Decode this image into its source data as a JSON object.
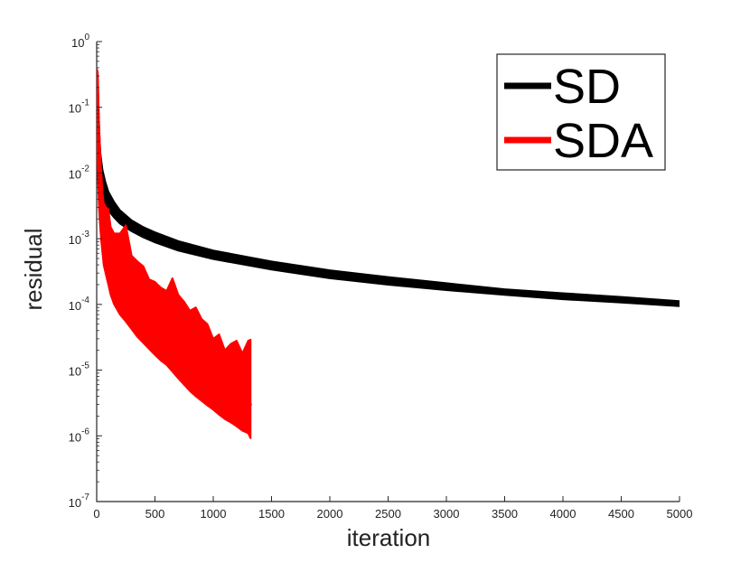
{
  "chart_data": {
    "type": "line",
    "title": "",
    "xlabel": "iteration",
    "ylabel": "residual",
    "xlim": [
      0,
      5000
    ],
    "ylim": [
      1e-07,
      1
    ],
    "yscale": "log",
    "grid": false,
    "legend_position": "top-right",
    "x_ticks": [
      0,
      500,
      1000,
      1500,
      2000,
      2500,
      3000,
      3500,
      4000,
      4500,
      5000
    ],
    "x_tick_labels": [
      "0",
      "500",
      "1000",
      "1500",
      "2000",
      "2500",
      "3000",
      "3500",
      "4000",
      "4500",
      "5000"
    ],
    "y_ticks": [
      {
        "value": 1e-07,
        "base": "10",
        "exp": "-7"
      },
      {
        "value": 1e-06,
        "base": "10",
        "exp": "-6"
      },
      {
        "value": 1e-05,
        "base": "10",
        "exp": "-5"
      },
      {
        "value": 0.0001,
        "base": "10",
        "exp": "-4"
      },
      {
        "value": 0.001,
        "base": "10",
        "exp": "-3"
      },
      {
        "value": 0.01,
        "base": "10",
        "exp": "-2"
      },
      {
        "value": 0.1,
        "base": "10",
        "exp": "-1"
      },
      {
        "value": 1,
        "base": "10",
        "exp": "0"
      }
    ],
    "series": [
      {
        "name": "SD",
        "color": "#000000",
        "x": [
          1,
          10,
          25,
          50,
          75,
          100,
          150,
          200,
          300,
          400,
          500,
          700,
          1000,
          1500,
          2000,
          2500,
          3000,
          3500,
          4000,
          4500,
          5000
        ],
        "y": [
          0.3,
          0.06,
          0.018,
          0.008,
          0.0055,
          0.004,
          0.0028,
          0.0021,
          0.0015,
          0.0012,
          0.001,
          0.00075,
          0.00055,
          0.00038,
          0.00028,
          0.00022,
          0.00018,
          0.00015,
          0.00013,
          0.000115,
          0.0001
        ],
        "band_upper": [
          0.36,
          0.08,
          0.024,
          0.011,
          0.0072,
          0.0052,
          0.0036,
          0.0027,
          0.0019,
          0.0015,
          0.00125,
          0.00092,
          0.00066,
          0.00045,
          0.00033,
          0.00026,
          0.00021,
          0.00017,
          0.000148,
          0.00013,
          0.000112
        ],
        "band_lower": [
          0.1,
          0.02,
          0.006,
          0.0042,
          0.0033,
          0.0027,
          0.0021,
          0.0017,
          0.0013,
          0.00105,
          0.00088,
          0.00066,
          0.00049,
          0.00034,
          0.00025,
          0.0002,
          0.000165,
          0.00014,
          0.00012,
          0.000107,
          9.4e-05
        ]
      },
      {
        "name": "SDA",
        "color": "#ff0000",
        "x": [
          1,
          5,
          10,
          20,
          30,
          40,
          50,
          60,
          80,
          100,
          120,
          150,
          200,
          250,
          300,
          350,
          400,
          450,
          500,
          550,
          600,
          650,
          700,
          750,
          800,
          850,
          900,
          950,
          1000,
          1050,
          1100,
          1150,
          1200,
          1250,
          1300,
          1320
        ],
        "y": [
          0.35,
          0.2,
          0.08,
          0.02,
          0.008,
          0.004,
          0.0025,
          0.0017,
          0.0011,
          0.0008,
          0.00055,
          0.00038,
          0.00028,
          0.00022,
          0.000165,
          0.00012,
          8.5e-05,
          6e-05,
          4.5e-05,
          3.4e-05,
          2.6e-05,
          2e-05,
          1.6e-05,
          1.3e-05,
          1.05e-05,
          8.8e-06,
          7.5e-06,
          6.5e-06,
          5.6e-06,
          5e-06,
          4.5e-06,
          4e-06,
          3.7e-06,
          3.4e-06,
          3.1e-06,
          3e-06
        ],
        "band_upper": [
          0.37,
          0.37,
          0.2,
          0.06,
          0.02,
          0.01,
          0.005,
          0.0035,
          0.003,
          0.0028,
          0.0015,
          0.0012,
          0.0012,
          0.0016,
          0.00055,
          0.00045,
          0.00038,
          0.00024,
          0.00022,
          0.00018,
          0.00016,
          0.00025,
          0.00014,
          0.00011,
          8e-05,
          9e-05,
          6e-05,
          5e-05,
          3e-05,
          3.5e-05,
          2e-05,
          2.5e-05,
          2.8e-05,
          1.8e-05,
          2.8e-05,
          2.9e-05
        ],
        "band_lower": [
          0.08,
          0.03,
          0.01,
          0.003,
          0.0015,
          0.0009,
          0.0006,
          0.0004,
          0.00028,
          0.0002,
          0.00014,
          0.0001,
          7e-05,
          5.5e-05,
          4.2e-05,
          3.2e-05,
          2.6e-05,
          2.1e-05,
          1.7e-05,
          1.4e-05,
          1.2e-05,
          9.5e-06,
          7.5e-06,
          6e-06,
          4.8e-06,
          4e-06,
          3.4e-06,
          2.9e-06,
          2.5e-06,
          2.1e-06,
          1.8e-06,
          1.6e-06,
          1.4e-06,
          1.2e-06,
          1.1e-06,
          9.2e-07
        ]
      }
    ]
  }
}
